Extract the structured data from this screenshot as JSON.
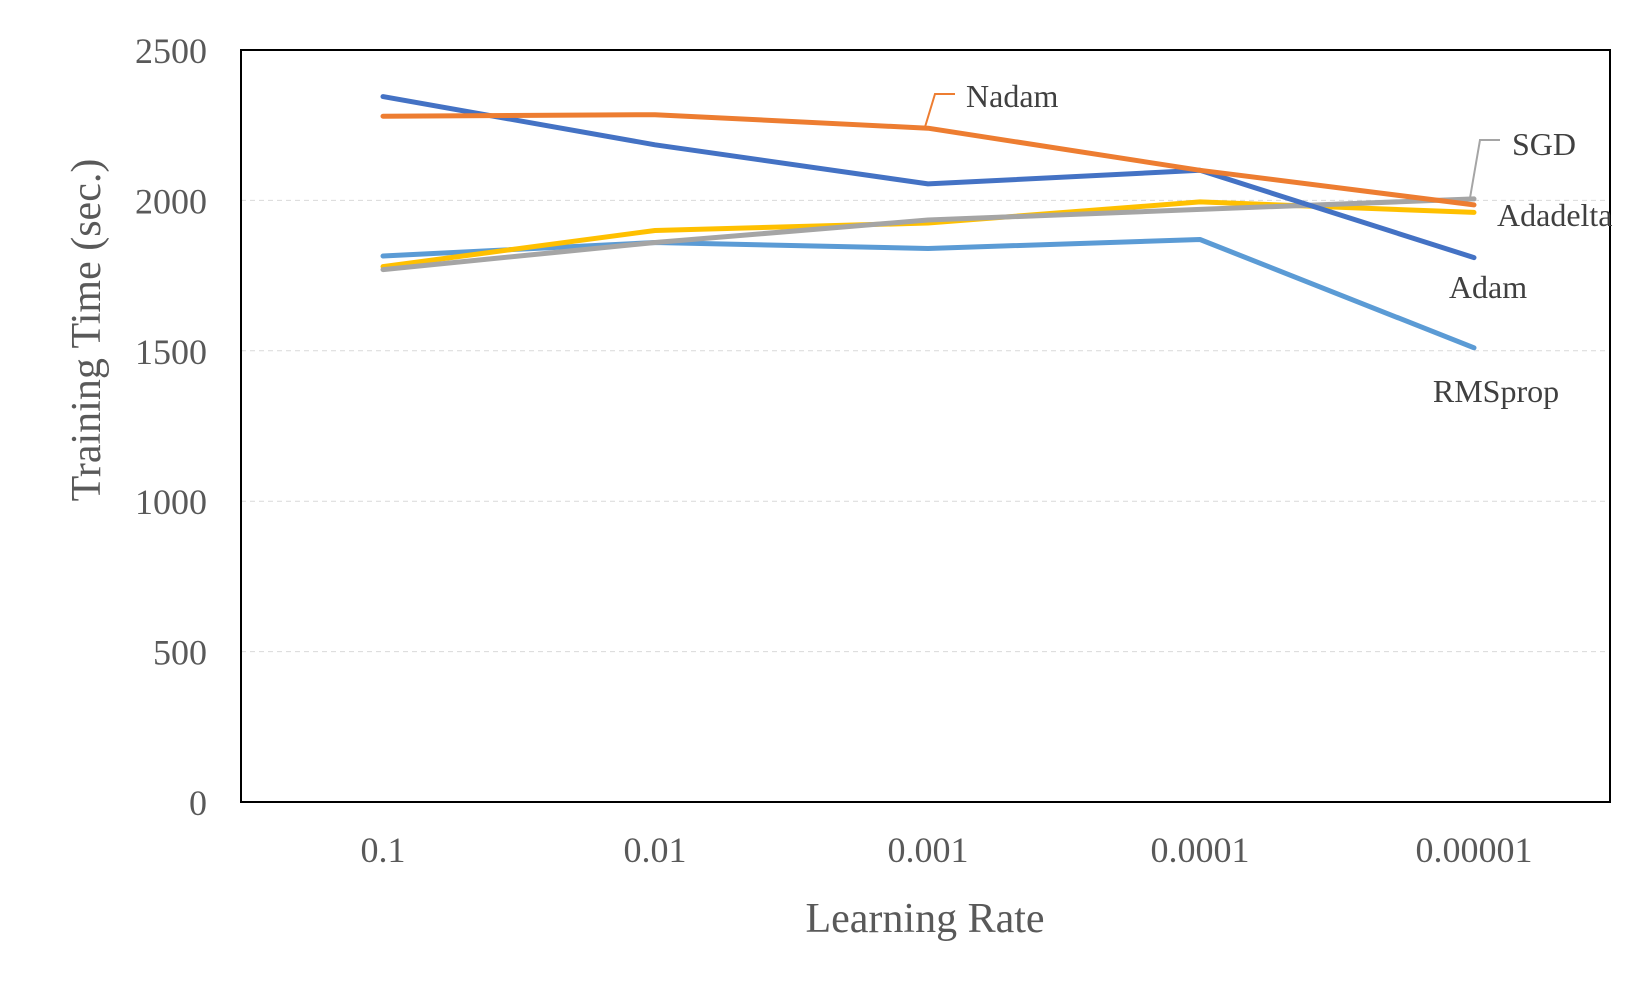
{
  "chart_data": {
    "type": "line",
    "title": "",
    "xlabel": "Learning Rate",
    "ylabel": "Training Time (sec.)",
    "categories": [
      "0.1",
      "0.01",
      "0.001",
      "0.0001",
      "0.00001"
    ],
    "ylim": [
      0,
      2500
    ],
    "yticks": [
      "0",
      "500",
      "1000",
      "1500",
      "2000",
      "2500"
    ],
    "grid": true,
    "legend": "inline labels at line ends",
    "series": [
      {
        "name": "Adam",
        "color": "#4472c4",
        "values": [
          2345,
          2185,
          2055,
          2100,
          1810
        ]
      },
      {
        "name": "Nadam",
        "color": "#ed7d31",
        "values": [
          2280,
          2285,
          2240,
          2100,
          1985
        ]
      },
      {
        "name": "SGD",
        "color": "#a5a5a5",
        "values": [
          1770,
          1860,
          1935,
          1970,
          2005
        ]
      },
      {
        "name": "Adadelta",
        "color": "#ffc000",
        "values": [
          1780,
          1900,
          1925,
          1995,
          1960
        ]
      },
      {
        "name": "RMSprop",
        "color": "#5b9bd5",
        "values": [
          1815,
          1860,
          1840,
          1870,
          1510
        ]
      }
    ]
  }
}
